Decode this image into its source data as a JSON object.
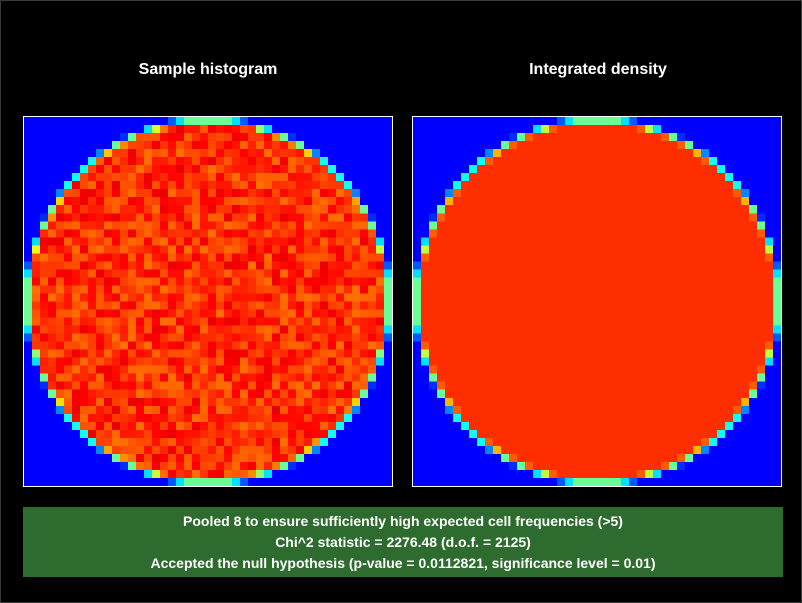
{
  "panels": {
    "left_title": "Sample histogram",
    "right_title": "Integrated density"
  },
  "status": {
    "line1": "Pooled 8 to ensure sufficiently high expected cell frequencies (>5)",
    "line2": "Chi^2 statistic = 2276.48 (d.o.f. = 2125)",
    "line3": "Accepted the null hypothesis (p-value = 0.0112821, significance level = 0.01)"
  },
  "colors": {
    "background": "#000000",
    "plot_background": "#0000ff",
    "status_background": "#2e6b2e",
    "density_fill": "#ff6000"
  }
}
